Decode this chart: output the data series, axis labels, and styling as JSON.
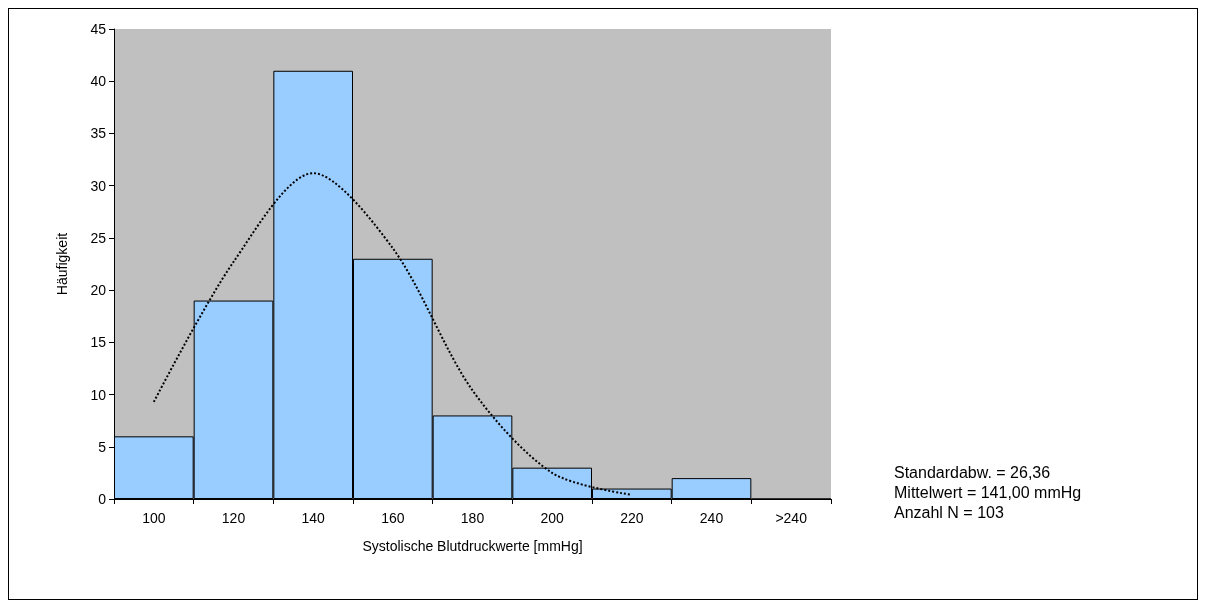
{
  "chart_data": {
    "type": "bar",
    "xlabel": "Systolische Blutdruckwerte [mmHg]",
    "ylabel": "Häufigkeit",
    "categories": [
      "100",
      "120",
      "140",
      "160",
      "180",
      "200",
      "220",
      "240",
      ">240"
    ],
    "series": [
      {
        "color": "#99ccff",
        "values": [
          6,
          19,
          41,
          23,
          8,
          3,
          1,
          2,
          0
        ]
      },
      {
        "type": "line",
        "color": "#000000",
        "line_style": "dotted",
        "marker": "none",
        "values": [
          9.3,
          22.7,
          31.2,
          24,
          10.4,
          2.5,
          0.4,
          null,
          null
        ]
      }
    ],
    "ylim": [
      0,
      45
    ],
    "yticks": [
      0,
      5,
      10,
      15,
      20,
      25,
      30,
      35,
      40,
      45
    ],
    "grid": false,
    "annotations": [
      "Standardabw. = 26,36",
      "Mittelwert = 141,00 mmHg",
      "Anzahl N = 103"
    ]
  }
}
